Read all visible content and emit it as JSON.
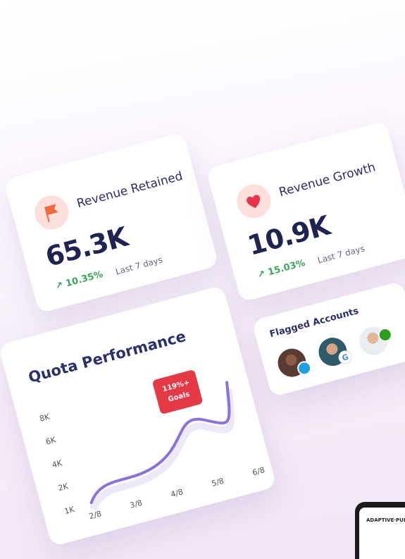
{
  "cards": {
    "revenue_retained": {
      "title": "Revenue Retained",
      "value": "65.3K",
      "change": "10.35%",
      "period": "Last 7 days"
    },
    "revenue_growth": {
      "title": "Revenue Growth",
      "value": "10.9K",
      "change": "15.03%",
      "period": "Last 7 days"
    },
    "quota_performance": {
      "title": "Quota Performance",
      "y_labels": [
        "8K",
        "6K",
        "4K",
        "2K",
        "1K"
      ],
      "x_labels": [
        "2/8",
        "3/8",
        "4/8",
        "5/8",
        "6/8"
      ],
      "callout": [
        "119%+",
        "Goals"
      ]
    },
    "flagged_accounts": {
      "title": "Flagged Accounts"
    }
  },
  "device": {
    "brand": "ADAPTIVE·PUL"
  }
}
